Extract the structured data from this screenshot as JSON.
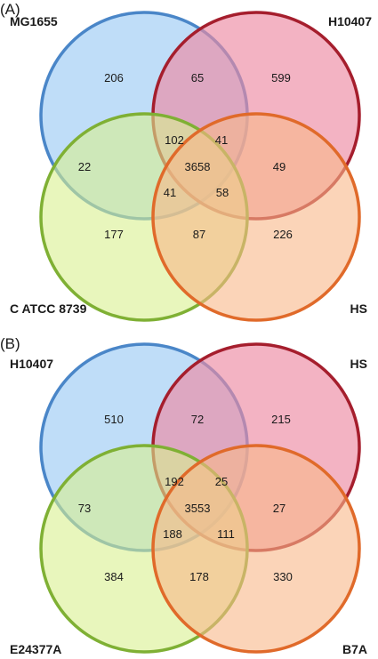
{
  "panels": [
    {
      "label": "(A)",
      "sets": [
        "MG1655",
        "H10407",
        "C ATCC 8739",
        "HS"
      ],
      "colors": {
        "MG1655": {
          "fill": "#a9d2f5",
          "stroke": "#4a86c8"
        },
        "H10407": {
          "fill": "#ec8aa3",
          "stroke": "#a51e2d"
        },
        "C ATCC 8739": {
          "fill": "#d8f08f",
          "stroke": "#7fb034"
        },
        "HS": {
          "fill": "#f9b889",
          "stroke": "#e06a2a"
        }
      },
      "regions": {
        "MG1655_only": "206",
        "MG1655_H10407": "65",
        "H10407_only": "599",
        "MG1655_H10407_CATCC8739": "102",
        "MG1655_H10407_HS": "41",
        "MG1655_CATCC8739": "22",
        "all": "3658",
        "H10407_HS": "49",
        "MG1655_CATCC8739_HS": "41",
        "H10407_CATCC8739_HS": "58",
        "CATCC8739_only": "177",
        "CATCC8739_HS": "87",
        "HS_only": "226"
      }
    },
    {
      "label": "(B)",
      "sets": [
        "H10407",
        "HS",
        "E24377A",
        "B7A"
      ],
      "colors": {
        "H10407": {
          "fill": "#a9d2f5",
          "stroke": "#4a86c8"
        },
        "HS": {
          "fill": "#ec8aa3",
          "stroke": "#a51e2d"
        },
        "E24377A": {
          "fill": "#d8f08f",
          "stroke": "#7fb034"
        },
        "B7A": {
          "fill": "#f9b889",
          "stroke": "#e06a2a"
        }
      },
      "regions": {
        "H10407_only": "510",
        "H10407_HS": "72",
        "HS_only": "215",
        "H10407_HS_E24377A": "192",
        "H10407_HS_B7A": "25",
        "H10407_E24377A": "73",
        "all": "3553",
        "HS_B7A": "27",
        "H10407_E24377A_B7A": "188",
        "HS_E24377A_B7A": "111",
        "E24377A_only": "384",
        "E24377A_B7A": "178",
        "B7A_only": "330"
      }
    }
  ]
}
